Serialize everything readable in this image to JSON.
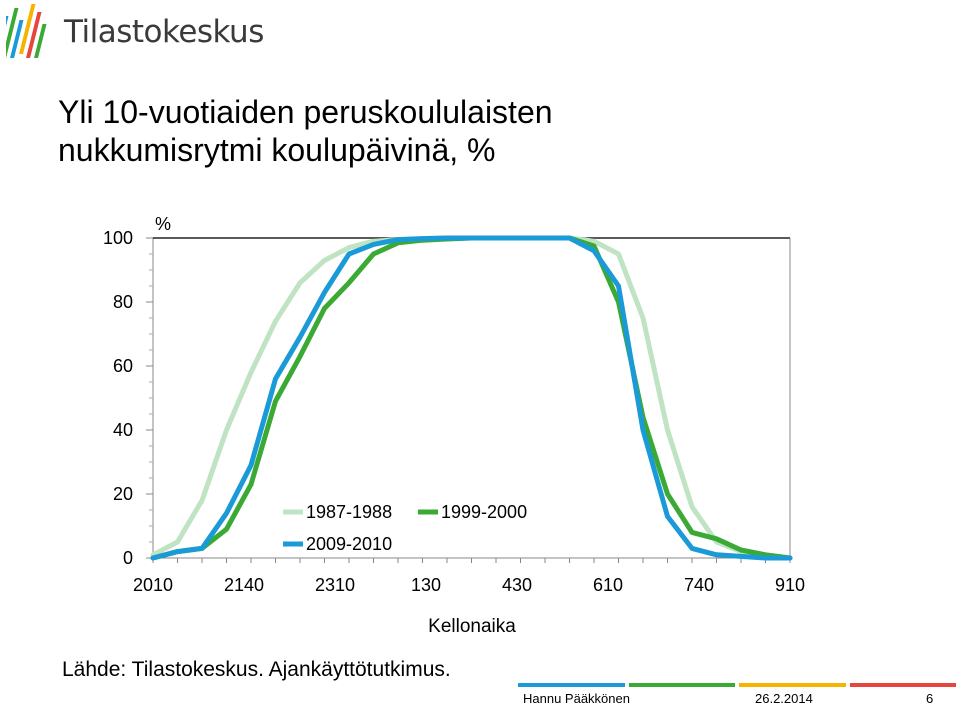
{
  "header": {
    "logo_text": "Tilastokeskus",
    "title_line1": "Yli 10-vuotiaiden peruskoululaisten",
    "title_line2": "nukkumisrytmi koulupäivinä, %"
  },
  "chart_data": {
    "type": "line",
    "title": "Yli 10-vuotiaiden peruskoululaisten nukkumisrytmi koulupäivinä, %",
    "xlabel": "Kellonaika",
    "ylabel": "%",
    "ylim": [
      0,
      100
    ],
    "y_ticks": [
      "0",
      "20",
      "40",
      "60",
      "80",
      "100"
    ],
    "x_tick_labels": [
      "2010",
      "2140",
      "2310",
      "130",
      "430",
      "610",
      "740",
      "910"
    ],
    "x": [
      "2010",
      "2040",
      "2110",
      "2140",
      "2210",
      "2240",
      "2310",
      "2340",
      "010",
      "040",
      "110",
      "140",
      "210",
      "240",
      "310",
      "340",
      "410",
      "440",
      "510",
      "540",
      "610",
      "640",
      "710",
      "740",
      "810",
      "840",
      "910"
    ],
    "legend_position": "inside-bottom-left",
    "grid": false,
    "series": [
      {
        "name": "1987-1988",
        "color": "#bfe3c3",
        "values": [
          1,
          5,
          18,
          40,
          58,
          74,
          86,
          93,
          97,
          99,
          99.5,
          99.8,
          100,
          100,
          100,
          100,
          100,
          100,
          99,
          95,
          75,
          40,
          16,
          5,
          2,
          1,
          0
        ]
      },
      {
        "name": "1999-2000",
        "color": "#3aaa35",
        "values": [
          0,
          2,
          3,
          9,
          23,
          49,
          63,
          78,
          86,
          95,
          98.5,
          99.3,
          99.7,
          100,
          100,
          100,
          100,
          100,
          97.5,
          80,
          44,
          20,
          8,
          6,
          2.5,
          1,
          0
        ]
      },
      {
        "name": "2009-2010",
        "color": "#1a9ad6",
        "values": [
          0,
          2,
          3,
          14,
          29,
          56,
          69,
          83,
          95,
          98,
          99.5,
          99.8,
          100,
          100,
          100,
          100,
          100,
          100,
          96,
          85,
          40,
          13,
          3,
          1,
          0.5,
          0,
          0
        ]
      }
    ]
  },
  "footer": {
    "source": "Lähde: Tilastokeskus. Ajankäyttötutkimus.",
    "author": "Hannu Pääkkönen",
    "date": "26.2.2014",
    "page": "6",
    "bar_colors": [
      "#1a9ad6",
      "#3aaa35",
      "#f5b400",
      "#e8453c"
    ]
  }
}
